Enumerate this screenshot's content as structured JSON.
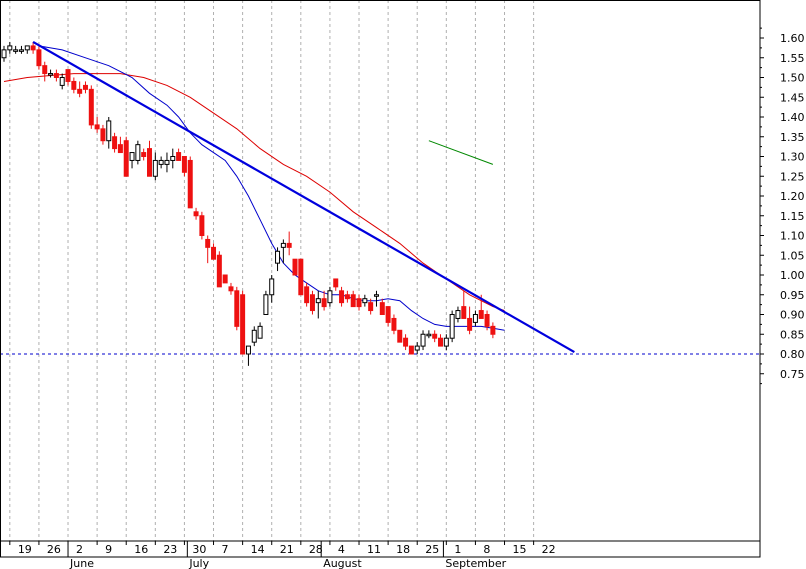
{
  "chart_data": {
    "type": "candlestick",
    "ylim": [
      0.72,
      1.66
    ],
    "x_range": [
      0,
      107
    ],
    "y_ticks": [
      "1.60",
      "1.55",
      "1.50",
      "1.45",
      "1.40",
      "1.35",
      "1.30",
      "1.25",
      "1.20",
      "1.15",
      "1.10",
      "1.05",
      "1.00",
      "0.95",
      "0.90",
      "0.85",
      "0.80",
      "0.75"
    ],
    "x_ticks": [
      {
        "label": "19",
        "i": 1
      },
      {
        "label": "26",
        "i": 6
      },
      {
        "label": "2",
        "i": 11
      },
      {
        "label": "9",
        "i": 16
      },
      {
        "label": "16",
        "i": 21
      },
      {
        "label": "23",
        "i": 26
      },
      {
        "label": "30",
        "i": 31
      },
      {
        "label": "7",
        "i": 36
      },
      {
        "label": "14",
        "i": 41
      },
      {
        "label": "21",
        "i": 46
      },
      {
        "label": "28",
        "i": 51
      },
      {
        "label": "4",
        "i": 56
      },
      {
        "label": "11",
        "i": 61
      },
      {
        "label": "18",
        "i": 66
      },
      {
        "label": "25",
        "i": 71
      },
      {
        "label": "1",
        "i": 76
      },
      {
        "label": "8",
        "i": 81
      },
      {
        "label": "15",
        "i": 86
      },
      {
        "label": "22",
        "i": 91
      }
    ],
    "months": [
      {
        "label": "June",
        "i": 11
      },
      {
        "label": "July",
        "i": 31.5
      },
      {
        "label": "August",
        "i": 54.5
      },
      {
        "label": "September",
        "i": 75.5
      }
    ],
    "candles": [
      [
        1.55,
        1.58,
        1.54,
        1.57
      ],
      [
        1.57,
        1.59,
        1.56,
        1.58
      ],
      [
        1.57,
        1.58,
        1.56,
        1.57
      ],
      [
        1.57,
        1.58,
        1.56,
        1.57
      ],
      [
        1.57,
        1.58,
        1.56,
        1.58
      ],
      [
        1.58,
        1.59,
        1.56,
        1.57
      ],
      [
        1.57,
        1.58,
        1.52,
        1.53
      ],
      [
        1.53,
        1.54,
        1.49,
        1.51
      ],
      [
        1.51,
        1.52,
        1.5,
        1.51
      ],
      [
        1.51,
        1.52,
        1.49,
        1.5
      ],
      [
        1.48,
        1.51,
        1.47,
        1.5
      ],
      [
        1.52,
        1.52,
        1.48,
        1.49
      ],
      [
        1.49,
        1.5,
        1.46,
        1.47
      ],
      [
        1.47,
        1.49,
        1.45,
        1.46
      ],
      [
        1.48,
        1.49,
        1.46,
        1.47
      ],
      [
        1.47,
        1.48,
        1.37,
        1.38
      ],
      [
        1.38,
        1.4,
        1.36,
        1.37
      ],
      [
        1.37,
        1.38,
        1.33,
        1.34
      ],
      [
        1.34,
        1.4,
        1.32,
        1.39
      ],
      [
        1.35,
        1.36,
        1.31,
        1.32
      ],
      [
        1.33,
        1.35,
        1.31,
        1.31
      ],
      [
        1.34,
        1.35,
        1.25,
        1.25
      ],
      [
        1.29,
        1.31,
        1.27,
        1.31
      ],
      [
        1.29,
        1.34,
        1.28,
        1.33
      ],
      [
        1.31,
        1.32,
        1.29,
        1.3
      ],
      [
        1.32,
        1.34,
        1.25,
        1.25
      ],
      [
        1.25,
        1.31,
        1.24,
        1.29
      ],
      [
        1.28,
        1.3,
        1.27,
        1.29
      ],
      [
        1.28,
        1.31,
        1.26,
        1.29
      ],
      [
        1.29,
        1.32,
        1.27,
        1.3
      ],
      [
        1.31,
        1.32,
        1.29,
        1.29
      ],
      [
        1.3,
        1.3,
        1.25,
        1.26
      ],
      [
        1.29,
        1.3,
        1.17,
        1.17
      ],
      [
        1.16,
        1.17,
        1.14,
        1.15
      ],
      [
        1.15,
        1.16,
        1.09,
        1.1
      ],
      [
        1.09,
        1.1,
        1.03,
        1.07
      ],
      [
        1.07,
        1.08,
        1.04,
        1.04
      ],
      [
        1.05,
        1.06,
        0.97,
        0.97
      ],
      [
        1.0,
        1.0,
        0.98,
        0.98
      ],
      [
        0.97,
        0.98,
        0.95,
        0.96
      ],
      [
        0.96,
        0.97,
        0.86,
        0.87
      ],
      [
        0.95,
        0.96,
        0.8,
        0.8
      ],
      [
        0.8,
        0.82,
        0.77,
        0.82
      ],
      [
        0.83,
        0.87,
        0.82,
        0.86
      ],
      [
        0.84,
        0.88,
        0.84,
        0.87
      ],
      [
        0.9,
        0.96,
        0.9,
        0.95
      ],
      [
        0.95,
        1.0,
        0.93,
        0.99
      ],
      [
        1.03,
        1.07,
        1.01,
        1.06
      ],
      [
        1.07,
        1.09,
        1.03,
        1.08
      ],
      [
        1.08,
        1.11,
        1.05,
        1.07
      ],
      [
        1.04,
        1.04,
        1.0,
        1.0
      ],
      [
        1.04,
        1.04,
        0.95,
        0.95
      ],
      [
        0.97,
        0.98,
        0.92,
        0.93
      ],
      [
        0.95,
        0.96,
        0.9,
        0.91
      ],
      [
        0.93,
        0.96,
        0.89,
        0.94
      ],
      [
        0.94,
        0.96,
        0.91,
        0.92
      ],
      [
        0.93,
        0.97,
        0.92,
        0.96
      ],
      [
        0.99,
        0.99,
        0.96,
        0.97
      ],
      [
        0.96,
        0.97,
        0.92,
        0.93
      ],
      [
        0.95,
        0.96,
        0.93,
        0.94
      ],
      [
        0.95,
        0.96,
        0.92,
        0.92
      ],
      [
        0.94,
        0.95,
        0.91,
        0.92
      ],
      [
        0.93,
        0.95,
        0.92,
        0.94
      ],
      [
        0.93,
        0.94,
        0.9,
        0.91
      ],
      [
        0.95,
        0.96,
        0.92,
        0.95
      ],
      [
        0.93,
        0.94,
        0.9,
        0.9
      ],
      [
        0.92,
        0.92,
        0.87,
        0.88
      ],
      [
        0.89,
        0.9,
        0.85,
        0.86
      ],
      [
        0.86,
        0.86,
        0.83,
        0.83
      ],
      [
        0.84,
        0.85,
        0.81,
        0.82
      ],
      [
        0.82,
        0.82,
        0.8,
        0.8
      ],
      [
        0.81,
        0.83,
        0.8,
        0.82
      ],
      [
        0.82,
        0.86,
        0.81,
        0.85
      ],
      [
        0.85,
        0.86,
        0.84,
        0.85
      ],
      [
        0.85,
        0.86,
        0.83,
        0.84
      ],
      [
        0.84,
        0.85,
        0.82,
        0.82
      ],
      [
        0.82,
        0.85,
        0.81,
        0.84
      ],
      [
        0.84,
        0.91,
        0.83,
        0.9
      ],
      [
        0.89,
        0.92,
        0.88,
        0.91
      ],
      [
        0.92,
        0.96,
        0.89,
        0.89
      ],
      [
        0.89,
        0.92,
        0.85,
        0.86
      ],
      [
        0.88,
        0.91,
        0.87,
        0.9
      ],
      [
        0.91,
        0.95,
        0.89,
        0.89
      ],
      [
        0.9,
        0.91,
        0.86,
        0.87
      ],
      [
        0.87,
        0.88,
        0.84,
        0.85
      ]
    ],
    "ma_blue": [
      [
        6,
        1.58
      ],
      [
        10,
        1.57
      ],
      [
        14,
        1.55
      ],
      [
        18,
        1.53
      ],
      [
        22,
        1.5
      ],
      [
        25,
        1.46
      ],
      [
        28,
        1.43
      ],
      [
        30,
        1.4
      ],
      [
        32,
        1.36
      ],
      [
        34,
        1.33
      ],
      [
        36,
        1.31
      ],
      [
        38,
        1.29
      ],
      [
        40,
        1.25
      ],
      [
        42,
        1.2
      ],
      [
        44,
        1.14
      ],
      [
        46,
        1.08
      ],
      [
        48,
        1.03
      ],
      [
        50,
        1.0
      ],
      [
        52,
        0.98
      ],
      [
        54,
        0.96
      ],
      [
        56,
        0.95
      ],
      [
        58,
        0.95
      ],
      [
        60,
        0.94
      ],
      [
        62,
        0.935
      ],
      [
        64,
        0.935
      ],
      [
        66,
        0.94
      ],
      [
        68,
        0.935
      ],
      [
        70,
        0.91
      ],
      [
        72,
        0.89
      ],
      [
        74,
        0.875
      ],
      [
        76,
        0.87
      ],
      [
        78,
        0.87
      ],
      [
        80,
        0.87
      ],
      [
        82,
        0.87
      ],
      [
        84,
        0.865
      ],
      [
        86,
        0.86
      ]
    ],
    "ma_red": [
      [
        0,
        1.49
      ],
      [
        4,
        1.5
      ],
      [
        8,
        1.505
      ],
      [
        12,
        1.51
      ],
      [
        16,
        1.51
      ],
      [
        20,
        1.51
      ],
      [
        24,
        1.5
      ],
      [
        28,
        1.48
      ],
      [
        32,
        1.45
      ],
      [
        36,
        1.41
      ],
      [
        40,
        1.37
      ],
      [
        44,
        1.32
      ],
      [
        48,
        1.28
      ],
      [
        52,
        1.25
      ],
      [
        56,
        1.21
      ],
      [
        60,
        1.16
      ],
      [
        64,
        1.12
      ],
      [
        68,
        1.08
      ],
      [
        72,
        1.03
      ],
      [
        76,
        0.99
      ],
      [
        80,
        0.95
      ],
      [
        84,
        0.92
      ],
      [
        86,
        0.91
      ]
    ],
    "trendline": [
      [
        5,
        1.59
      ],
      [
        98,
        0.805
      ]
    ],
    "green_line": [
      [
        73,
        1.34
      ],
      [
        84,
        1.28
      ]
    ],
    "support_level": 0.8
  }
}
